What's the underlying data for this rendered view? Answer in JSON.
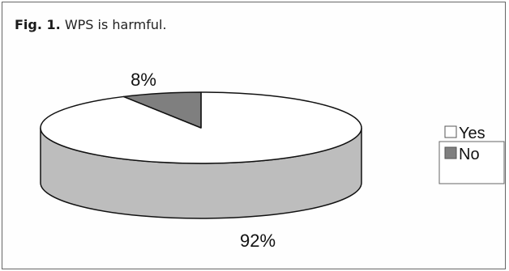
{
  "figure": {
    "label": "Fig. 1.",
    "caption": "WPS is harmful."
  },
  "chart_data": {
    "type": "pie",
    "style": "3d",
    "title": "",
    "categories": [
      "Yes",
      "No"
    ],
    "values": [
      92,
      8
    ],
    "labels": [
      "92%",
      "8%"
    ],
    "colors": [
      "#ffffff",
      "#7f7f7f"
    ],
    "side_colors": [
      "#bdbdbd",
      "#6a6a6a"
    ],
    "legend": "right"
  }
}
